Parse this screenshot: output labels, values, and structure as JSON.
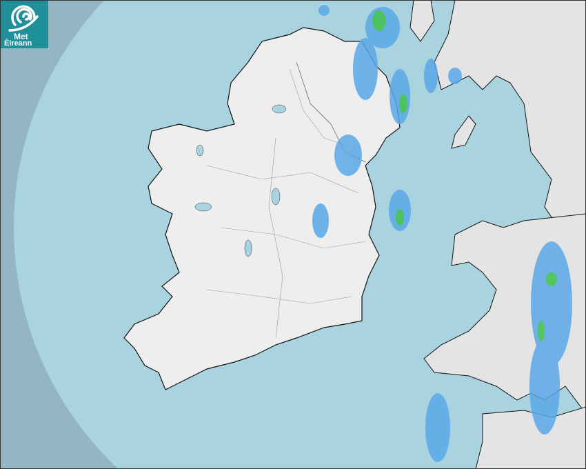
{
  "logo": {
    "line1": "Met",
    "line2": "Éireann"
  },
  "colors": {
    "sea": "#a9d3df",
    "outside_coverage": "#93b6c2",
    "land": "#eeeeee",
    "rain_light": "#5aa8e8",
    "rain_moderate": "#3cc04a",
    "brand": "#1f8f9a"
  },
  "icons": {
    "logo": "met-eireann-swirl-icon"
  }
}
